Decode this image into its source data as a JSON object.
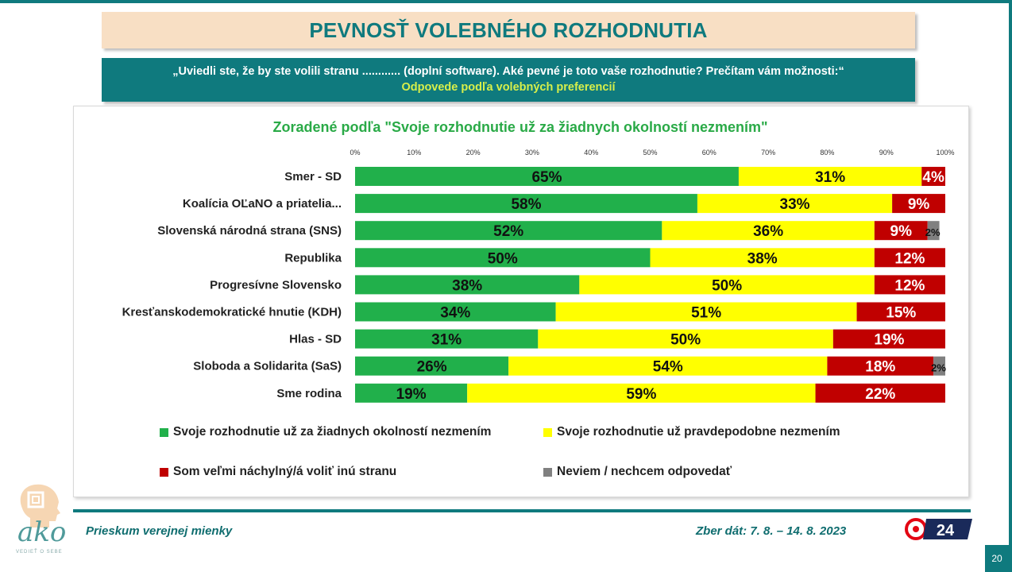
{
  "title": "PEVNOSŤ VOLEBNÉHO ROZHODNUTIA",
  "question": {
    "text": "„Uviedli ste, že by ste volili stranu ............ (doplní software). Aké pevné je toto vaše rozhodnutie? Prečítam vám možnosti:“",
    "subtitle": "Odpovede podľa volebných preferencií"
  },
  "chart_data": {
    "type": "bar",
    "orientation": "horizontal",
    "stacked": true,
    "title": "Zoradené podľa \"Svoje rozhodnutie už za žiadnych okolností nezmením\"",
    "xlim": [
      0,
      100
    ],
    "x_ticks": [
      "0%",
      "10%",
      "20%",
      "30%",
      "40%",
      "50%",
      "60%",
      "70%",
      "80%",
      "90%",
      "100%"
    ],
    "categories": [
      "Smer - SD",
      "Koalícia OĽaNO a priatelia...",
      "Slovenská národná strana (SNS)",
      "Republika",
      "Progresívne Slovensko",
      "Kresťanskodemokratické hnutie (KDH)",
      "Hlas - SD",
      "Sloboda a Solidarita (SaS)",
      "Sme rodina"
    ],
    "series": [
      {
        "name": "Svoje rozhodnutie už za žiadnych okolností nezmením",
        "color": "#21b04b",
        "values": [
          65,
          58,
          52,
          50,
          38,
          34,
          31,
          26,
          19
        ]
      },
      {
        "name": "Svoje rozhodnutie už pravdepodobne nezmením",
        "color": "#ffff00",
        "values": [
          31,
          33,
          36,
          38,
          50,
          51,
          50,
          54,
          59
        ]
      },
      {
        "name": "Som veľmi náchylný/á voliť inú stranu",
        "color": "#c00000",
        "values": [
          4,
          9,
          9,
          12,
          12,
          15,
          19,
          18,
          22
        ]
      },
      {
        "name": "Neviem / nechcem odpovedať",
        "color": "#808080",
        "values": [
          0,
          0,
          2,
          0,
          0,
          0,
          0,
          2,
          0
        ]
      }
    ],
    "data_labels": [
      [
        "65%",
        "31%",
        "4%",
        ""
      ],
      [
        "58%",
        "33%",
        "9%",
        ""
      ],
      [
        "52%",
        "36%",
        "9%",
        "2%"
      ],
      [
        "50%",
        "38%",
        "12%",
        ""
      ],
      [
        "38%",
        "50%",
        "12%",
        ""
      ],
      [
        "34%",
        "51%",
        "15%",
        ""
      ],
      [
        "31%",
        "50%",
        "19%",
        ""
      ],
      [
        "26%",
        "54%",
        "18%",
        "2%"
      ],
      [
        "19%",
        "59%",
        "22%",
        ""
      ]
    ],
    "legend": [
      "Svoje rozhodnutie už za žiadnych okolností nezmením",
      "Svoje rozhodnutie už pravdepodobne nezmením",
      "Som veľmi náchylný/á voliť inú stranu",
      "Neviem / nechcem odpovedať"
    ],
    "legend_placement": "bottom"
  },
  "footer": {
    "left": "Prieskum verejnej mienky",
    "right": "Zber dát: 7. 8. – 14. 8. 2023"
  },
  "page_number": "20",
  "logos": {
    "ako": "ako",
    "ako_tagline": "VEDIEŤ O SEBE",
    "joj": "24"
  },
  "colors": {
    "teal": "#0f7a7e",
    "title_bg": "#f8dfc4",
    "green": "#21b04b",
    "yellow": "#ffff00",
    "red": "#c00000",
    "gray": "#808080"
  }
}
